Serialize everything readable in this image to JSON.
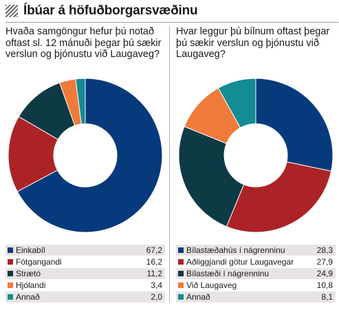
{
  "header": {
    "title": "Íbúar á höfuðborgarsvæðinu"
  },
  "chart_data": [
    {
      "type": "pie",
      "title": "Hvaða samgöngur hefur þú notað oftast sl. 12 mánuði þegar þú sækir verslun og þjónustu við Laugaveg?",
      "categories": [
        "Einkabíl",
        "Fótgangandi",
        "Strætó",
        "Hjólandi",
        "Annað"
      ],
      "values": [
        67.2,
        16.2,
        11.2,
        3.4,
        2.0
      ],
      "labels": [
        "67,2",
        "16,2",
        "11,2",
        "3,4",
        "2,0"
      ],
      "colors": [
        "#063a7c",
        "#ac2327",
        "#0d3a45",
        "#f07a3a",
        "#138c93"
      ],
      "donut": true,
      "legend": "bottom"
    },
    {
      "type": "pie",
      "title": "Hvar leggur þú bílnum oftast þegar þú sækir verslun og þjónustu við Laugaveg?",
      "categories": [
        "Bílastæðahús í nágrenninu",
        "Aðliggjandi götur Laugavegar",
        "Bílastæði í nágrenninu",
        "Við Laugaveg",
        "Annað"
      ],
      "values": [
        28.3,
        27.9,
        24.9,
        10.8,
        8.1
      ],
      "labels": [
        "28,3",
        "27,9",
        "24,9",
        "10,8",
        "8,1"
      ],
      "colors": [
        "#063a7c",
        "#ac2327",
        "#0d3a45",
        "#f07a3a",
        "#138c93"
      ],
      "donut": true,
      "legend": "bottom"
    }
  ]
}
